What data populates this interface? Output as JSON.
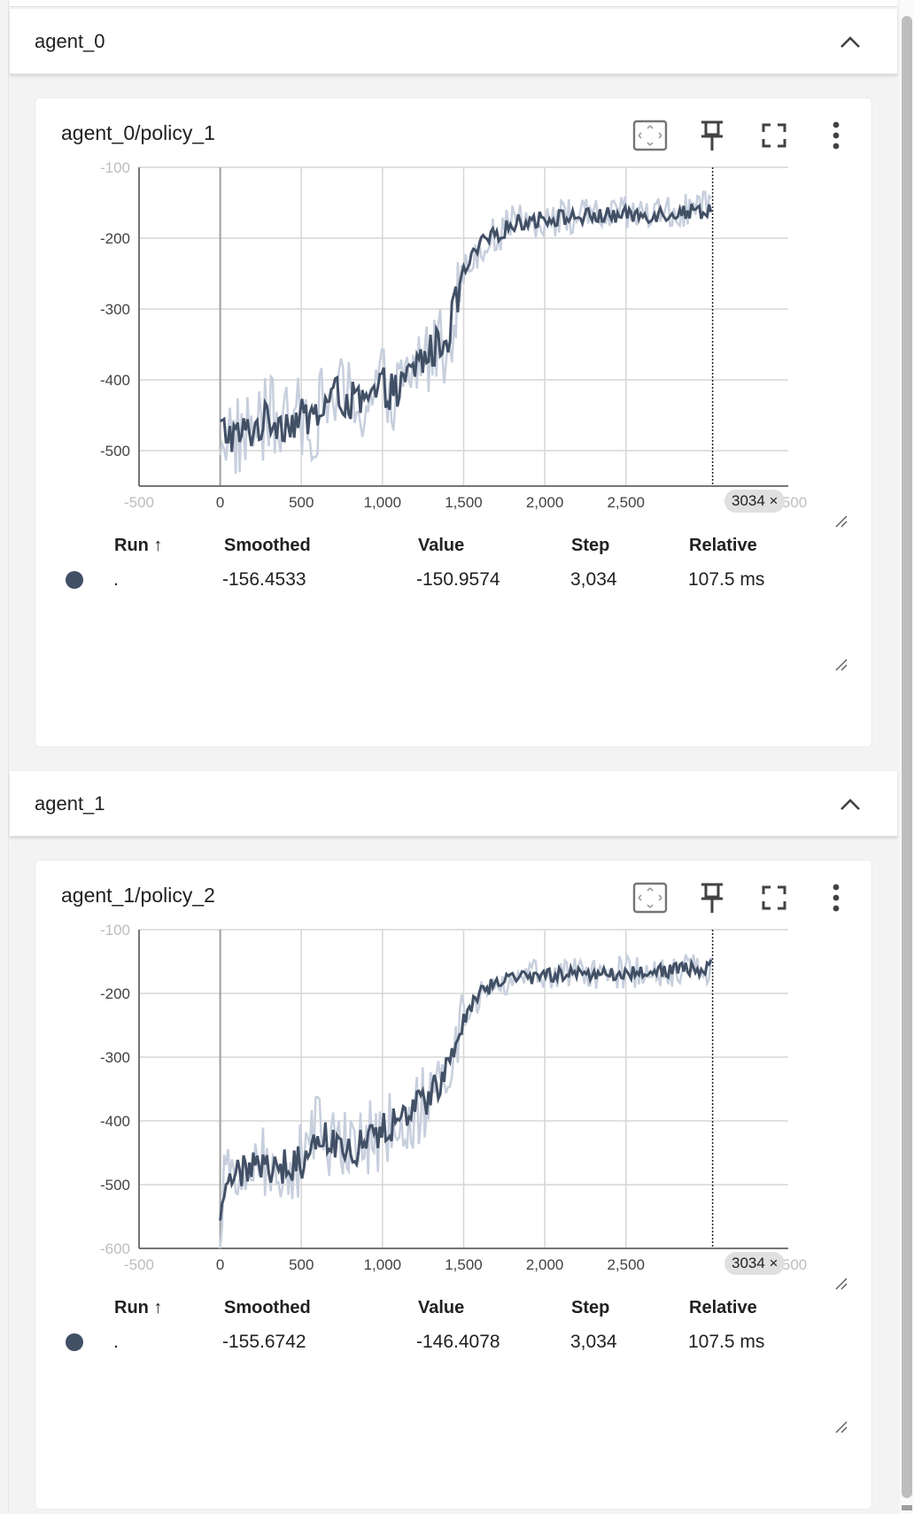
{
  "groups": [
    {
      "title": "agent_0",
      "card": {
        "title": "agent_0/policy_1",
        "crosshair_label": "3034 ×",
        "table": {
          "headers": {
            "run": "Run ↑",
            "smoothed": "Smoothed",
            "value": "Value",
            "step": "Step",
            "relative": "Relative"
          },
          "row": {
            "run": ".",
            "smoothed": "-156.4533",
            "value": "-150.9574",
            "step": "3,034",
            "relative": "107.5 ms"
          }
        }
      }
    },
    {
      "title": "agent_1",
      "card": {
        "title": "agent_1/policy_2",
        "crosshair_label": "3034 ×",
        "table": {
          "headers": {
            "run": "Run ↑",
            "smoothed": "Smoothed",
            "value": "Value",
            "step": "Step",
            "relative": "Relative"
          },
          "row": {
            "run": ".",
            "smoothed": "-155.6742",
            "value": "-146.4078",
            "step": "3,034",
            "relative": "107.5 ms"
          }
        }
      }
    }
  ],
  "colors": {
    "line": "#425066",
    "raw_line": "#c7cfdd",
    "grid": "#d6d6d6",
    "axis": "#757575"
  },
  "icons": [
    "chevron-up-icon",
    "fit-domain-icon",
    "pin-icon",
    "fullscreen-icon",
    "more-vert-icon",
    "resize-icon"
  ],
  "chart_data": [
    {
      "type": "line",
      "title": "agent_0/policy_1",
      "xlim": [
        -500,
        3500
      ],
      "ylim": [
        -550,
        -100
      ],
      "x_ticks": [
        "-500",
        "0",
        "500",
        "1,000",
        "1,500",
        "2,000",
        "2,500",
        "3,500"
      ],
      "y_ticks": [
        "-100",
        "-200",
        "-300",
        "-400",
        "-500"
      ],
      "crosshair_step": 3034,
      "grid": true,
      "series": [
        {
          "x": [
            0,
            100,
            200,
            300,
            400,
            500,
            600,
            700,
            800,
            900,
            1000,
            1100,
            1200,
            1300,
            1400,
            1500,
            1600,
            1700,
            1800,
            1900,
            2000,
            2200,
            2400,
            2600,
            2800,
            3000,
            3034
          ],
          "y": [
            -470,
            -480,
            -470,
            -455,
            -460,
            -455,
            -450,
            -420,
            -430,
            -435,
            -410,
            -420,
            -380,
            -360,
            -340,
            -250,
            -210,
            -195,
            -180,
            -175,
            -172,
            -170,
            -168,
            -167,
            -164,
            -160,
            -156.45
          ]
        }
      ]
    },
    {
      "type": "line",
      "title": "agent_1/policy_2",
      "xlim": [
        -500,
        3500
      ],
      "ylim": [
        -600,
        -100
      ],
      "x_ticks": [
        "-500",
        "0",
        "500",
        "1,000",
        "1,500",
        "2,000",
        "2,500",
        "3,500"
      ],
      "y_ticks": [
        "-100",
        "-200",
        "-300",
        "-400",
        "-500",
        "-600"
      ],
      "crosshair_step": 3034,
      "grid": true,
      "series": [
        {
          "x": [
            0,
            20,
            100,
            200,
            300,
            400,
            500,
            600,
            700,
            800,
            900,
            1000,
            1100,
            1200,
            1300,
            1400,
            1500,
            1600,
            1700,
            1800,
            1900,
            2000,
            2200,
            2400,
            2600,
            2800,
            3000,
            3034
          ],
          "y": [
            -570,
            -500,
            -480,
            -475,
            -470,
            -472,
            -465,
            -410,
            -440,
            -450,
            -430,
            -415,
            -400,
            -380,
            -360,
            -320,
            -240,
            -200,
            -185,
            -178,
            -175,
            -172,
            -170,
            -168,
            -166,
            -163,
            -160,
            -155.67
          ]
        }
      ]
    }
  ]
}
